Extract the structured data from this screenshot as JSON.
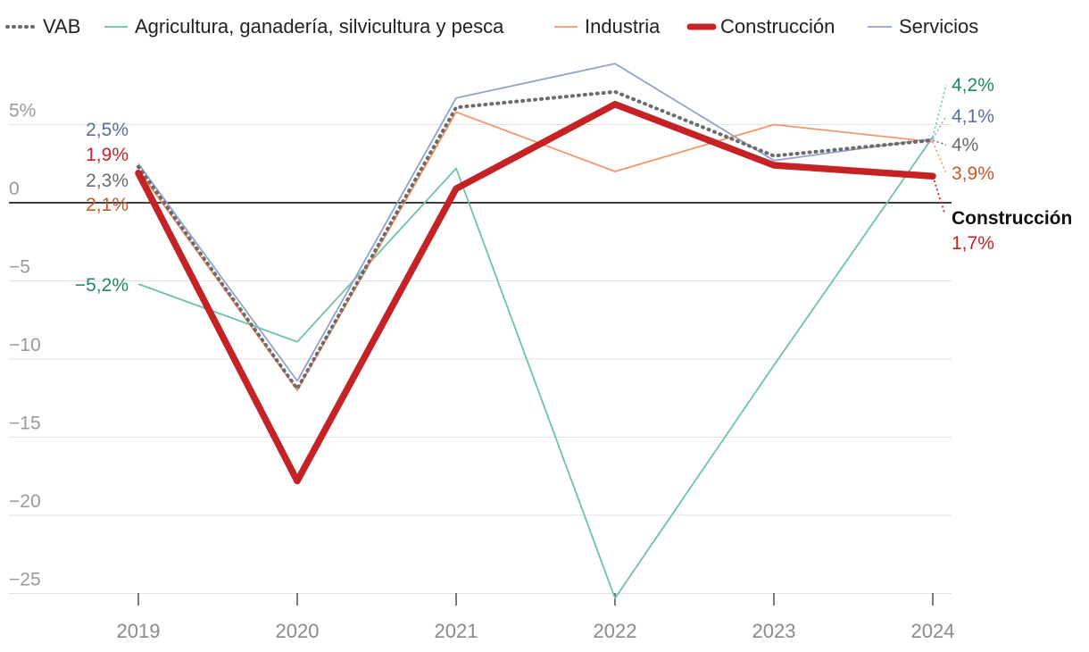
{
  "chart_data": {
    "type": "line",
    "categories": [
      "2019",
      "2020",
      "2021",
      "2022",
      "2023",
      "2024"
    ],
    "yticks": [
      {
        "value": 5,
        "label": "5%"
      },
      {
        "value": 0,
        "label": "0"
      },
      {
        "value": -5,
        "label": "−5"
      },
      {
        "value": -10,
        "label": "−10"
      },
      {
        "value": -15,
        "label": "−15"
      },
      {
        "value": -20,
        "label": "−20"
      },
      {
        "value": -25,
        "label": "−25"
      }
    ],
    "ylim": [
      -25.5,
      9.5
    ],
    "grid": true,
    "legend_position": "top",
    "series": [
      {
        "key": "vab",
        "name": "VAB",
        "color": "#6b6b6b",
        "style": "dotted",
        "values": [
          2.3,
          -11.9,
          6.1,
          7.1,
          3.0,
          4.0
        ],
        "start_label": "2,3%",
        "start_label_color": "#6b6b6b",
        "end_label": "4%",
        "end_label_color": "#6b6b6b"
      },
      {
        "key": "agri",
        "name": "Agricultura, ganadería, silvicultura y pesca",
        "color": "#6cc3a8",
        "style": "thin",
        "values": [
          -5.2,
          -8.9,
          2.2,
          -25.3,
          -10.4,
          4.2
        ],
        "start_label": "−5,2%",
        "start_label_color": "#1f8a5e",
        "end_label": "4,2%",
        "end_label_color": "#1f8a5e"
      },
      {
        "key": "ind",
        "name": "Industria",
        "color": "#f4956a",
        "style": "thin",
        "values": [
          2.1,
          -12.0,
          5.8,
          2.0,
          5.0,
          3.9
        ],
        "start_label": "2,1%",
        "start_label_color": "#c65a2a",
        "end_label": "3,9%",
        "end_label_color": "#c65a2a"
      },
      {
        "key": "serv",
        "name": "Servicios",
        "color": "#93a2c8",
        "style": "thin",
        "values": [
          2.5,
          -11.4,
          6.7,
          8.9,
          2.7,
          4.1
        ],
        "start_label": "2,5%",
        "start_label_color": "#5a6f99",
        "end_label": "4,1%",
        "end_label_color": "#5a6f99"
      },
      {
        "key": "const",
        "name": "Construcción",
        "color": "#c52225",
        "style": "thick",
        "values": [
          1.9,
          -17.8,
          0.9,
          6.3,
          2.4,
          1.7
        ],
        "start_label": "1,9%",
        "start_label_color": "#c52225",
        "end_label": "1,7%",
        "end_label_color": "#c52225",
        "end_name_label": "Construcción"
      }
    ]
  }
}
